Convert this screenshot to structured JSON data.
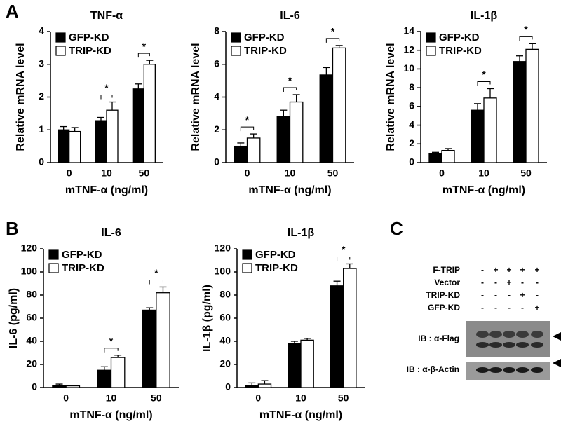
{
  "panel_labels": [
    "A",
    "B",
    "C"
  ],
  "chart_data": [
    {
      "type": "bar",
      "title": "TNF-α",
      "ylabel": "Relative mRNA level",
      "xlabel": "mTNF-α (ng/ml)",
      "categories": [
        "0",
        "10",
        "50"
      ],
      "ylim": [
        0,
        4
      ],
      "yticks": [
        0,
        1,
        2,
        3,
        4
      ],
      "series": [
        {
          "name": "GFP-KD",
          "color": "#000000",
          "values": [
            1.0,
            1.28,
            2.25
          ],
          "errors": [
            0.1,
            0.1,
            0.15
          ]
        },
        {
          "name": "TRIP-KD",
          "color": "#ffffff",
          "values": [
            0.95,
            1.6,
            3.0
          ],
          "errors": [
            0.12,
            0.25,
            0.12
          ]
        }
      ],
      "significance": [
        null,
        "*",
        "*"
      ]
    },
    {
      "type": "bar",
      "title": "IL-6",
      "ylabel": "Relative mRNA level",
      "xlabel": "mTNF-α (ng/ml)",
      "categories": [
        "0",
        "10",
        "50"
      ],
      "ylim": [
        0,
        8
      ],
      "yticks": [
        0,
        2,
        4,
        6,
        8
      ],
      "series": [
        {
          "name": "GFP-KD",
          "color": "#000000",
          "values": [
            1.0,
            2.8,
            5.35
          ],
          "errors": [
            0.2,
            0.4,
            0.45
          ]
        },
        {
          "name": "TRIP-KD",
          "color": "#ffffff",
          "values": [
            1.5,
            3.7,
            7.0
          ],
          "errors": [
            0.25,
            0.45,
            0.15
          ]
        }
      ],
      "significance": [
        "*",
        "*",
        "*"
      ]
    },
    {
      "type": "bar",
      "title": "IL-1β",
      "ylabel": "Relative mRNA level",
      "xlabel": "mTNF-α (ng/ml)",
      "categories": [
        "0",
        "10",
        "50"
      ],
      "ylim": [
        0,
        14
      ],
      "yticks": [
        0,
        2,
        4,
        6,
        8,
        10,
        12,
        14
      ],
      "series": [
        {
          "name": "GFP-KD",
          "color": "#000000",
          "values": [
            1.0,
            5.6,
            10.8
          ],
          "errors": [
            0.1,
            0.7,
            0.6
          ]
        },
        {
          "name": "TRIP-KD",
          "color": "#ffffff",
          "values": [
            1.3,
            6.9,
            12.1
          ],
          "errors": [
            0.2,
            1.0,
            0.6
          ]
        }
      ],
      "significance": [
        null,
        "*",
        "*"
      ]
    },
    {
      "type": "bar",
      "title": "IL-6",
      "ylabel": "IL-6  (pg/ml)",
      "xlabel": "mTNF-α (ng/ml)",
      "categories": [
        "0",
        "10",
        "50"
      ],
      "ylim": [
        0,
        120
      ],
      "yticks": [
        0,
        20,
        40,
        60,
        80,
        100,
        120
      ],
      "series": [
        {
          "name": "GFP-KD",
          "color": "#000000",
          "values": [
            2,
            15,
            67
          ],
          "errors": [
            1,
            3,
            2
          ]
        },
        {
          "name": "TRIP-KD",
          "color": "#ffffff",
          "values": [
            1.5,
            26,
            82
          ],
          "errors": [
            0.5,
            2,
            5
          ]
        }
      ],
      "significance": [
        null,
        "*",
        "*"
      ]
    },
    {
      "type": "bar",
      "title": "IL-1β",
      "ylabel": "IL-1β  (pg/ml)",
      "xlabel": "mTNF-α (ng/ml)",
      "categories": [
        "0",
        "10",
        "50"
      ],
      "ylim": [
        0,
        120
      ],
      "yticks": [
        0,
        20,
        40,
        60,
        80,
        100,
        120
      ],
      "series": [
        {
          "name": "GFP-KD",
          "color": "#000000",
          "values": [
            2,
            38,
            88
          ],
          "errors": [
            2,
            2,
            4
          ]
        },
        {
          "name": "TRIP-KD",
          "color": "#ffffff",
          "values": [
            3,
            41,
            103
          ],
          "errors": [
            3,
            1.5,
            4
          ]
        }
      ],
      "significance": [
        null,
        null,
        "*"
      ]
    }
  ],
  "blot": {
    "rows": [
      {
        "label": "F-TRIP",
        "signs": [
          "-",
          "+",
          "+",
          "+",
          "+"
        ]
      },
      {
        "label": "Vector",
        "signs": [
          "-",
          "-",
          "+",
          "-",
          "-"
        ]
      },
      {
        "label": "TRIP-KD",
        "signs": [
          "-",
          "-",
          "-",
          "+",
          "-"
        ]
      },
      {
        "label": "GFP-KD",
        "signs": [
          "-",
          "-",
          "-",
          "-",
          "+"
        ]
      }
    ],
    "antibodies": [
      "IB : α-Flag",
      "IB : α-β-Actin"
    ]
  }
}
